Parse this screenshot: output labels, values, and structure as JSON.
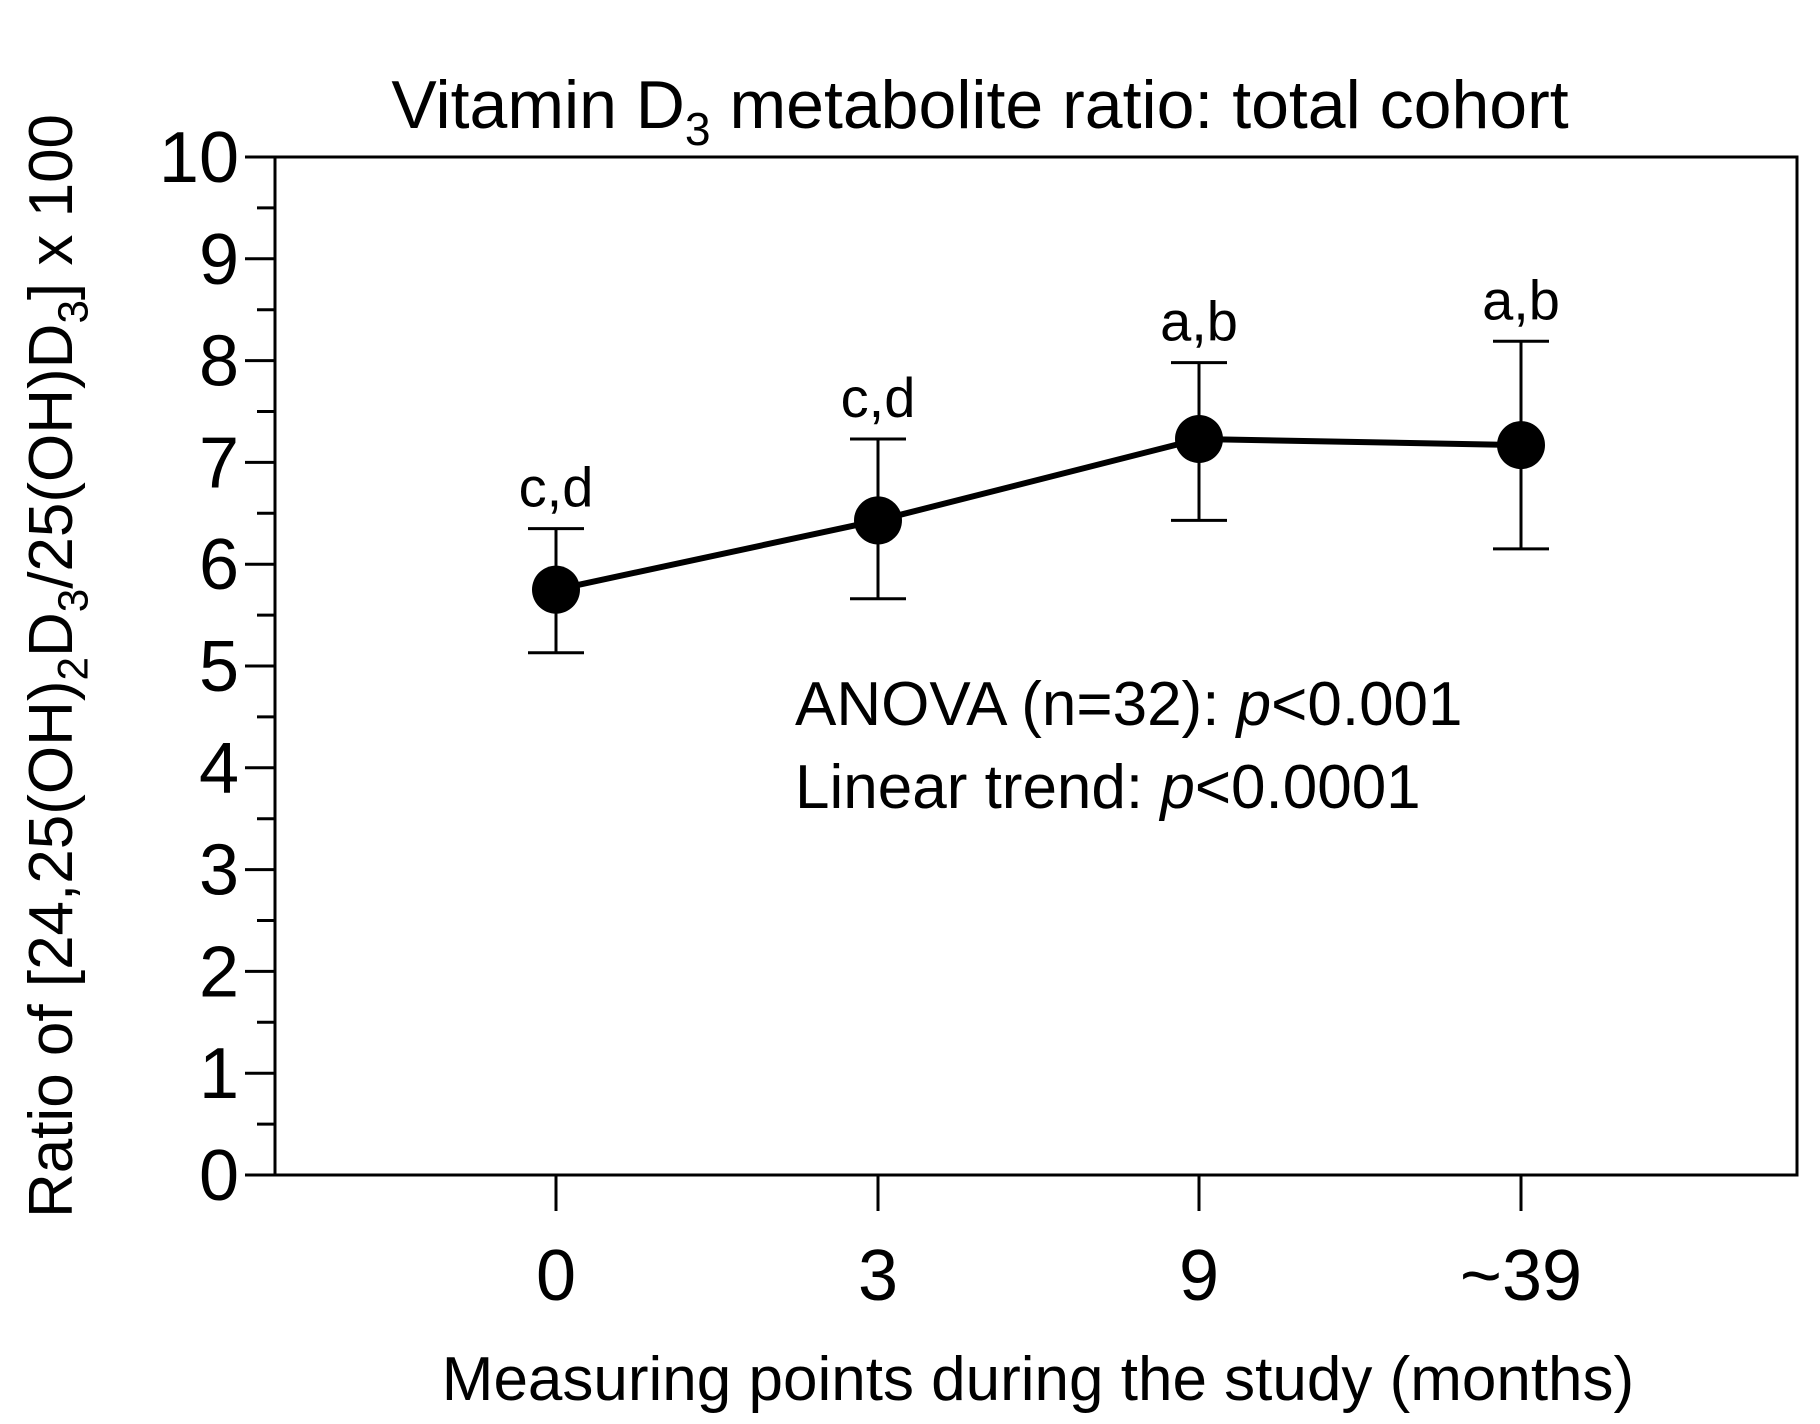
{
  "chart_data": {
    "type": "line",
    "title_parts": [
      {
        "t": "Vitamin D"
      },
      {
        "t": "3",
        "sub": true
      },
      {
        "t": " metabolite ratio: total cohort"
      }
    ],
    "title": "Vitamin D3 metabolite ratio: total cohort",
    "xlabel": "Measuring points during the study (months)",
    "ylabel": "Ratio of [24,25(OH)2D3/25(OH)D3] x 100",
    "ylabel_parts": [
      {
        "t": "Ratio of [24,25(OH)"
      },
      {
        "t": "2",
        "sub": true
      },
      {
        "t": "D"
      },
      {
        "t": "3",
        "sub": true
      },
      {
        "t": "/25(OH)D"
      },
      {
        "t": "3",
        "sub": true
      },
      {
        "t": "] x 100"
      }
    ],
    "categories": [
      "0",
      "3",
      "9",
      "~39"
    ],
    "yticks": [
      "0",
      "1",
      "2",
      "3",
      "4",
      "5",
      "6",
      "7",
      "8",
      "9",
      "10"
    ],
    "ylim": [
      0,
      10
    ],
    "grid": false,
    "series": [
      {
        "name": "Total cohort",
        "values": [
          5.75,
          6.43,
          7.23,
          7.17
        ],
        "error_upper": [
          6.35,
          7.23,
          7.98,
          8.19
        ],
        "error_lower": [
          5.13,
          5.66,
          6.43,
          6.15
        ],
        "labels": [
          "c,d",
          "c,d",
          "a,b",
          "a,b"
        ]
      }
    ],
    "annotations": [
      {
        "text_parts": [
          {
            "t": "ANOVA (n=32): "
          },
          {
            "t": "p",
            "i": true
          },
          {
            "t": "<0.001"
          }
        ],
        "text": "ANOVA (n=32): p<0.001"
      },
      {
        "text_parts": [
          {
            "t": "Linear trend: "
          },
          {
            "t": "p",
            "i": true
          },
          {
            "t": "<0.0001"
          }
        ],
        "text": "Linear trend: p<0.0001"
      }
    ],
    "colors": {
      "line": "#000000",
      "marker": "#000000"
    }
  }
}
